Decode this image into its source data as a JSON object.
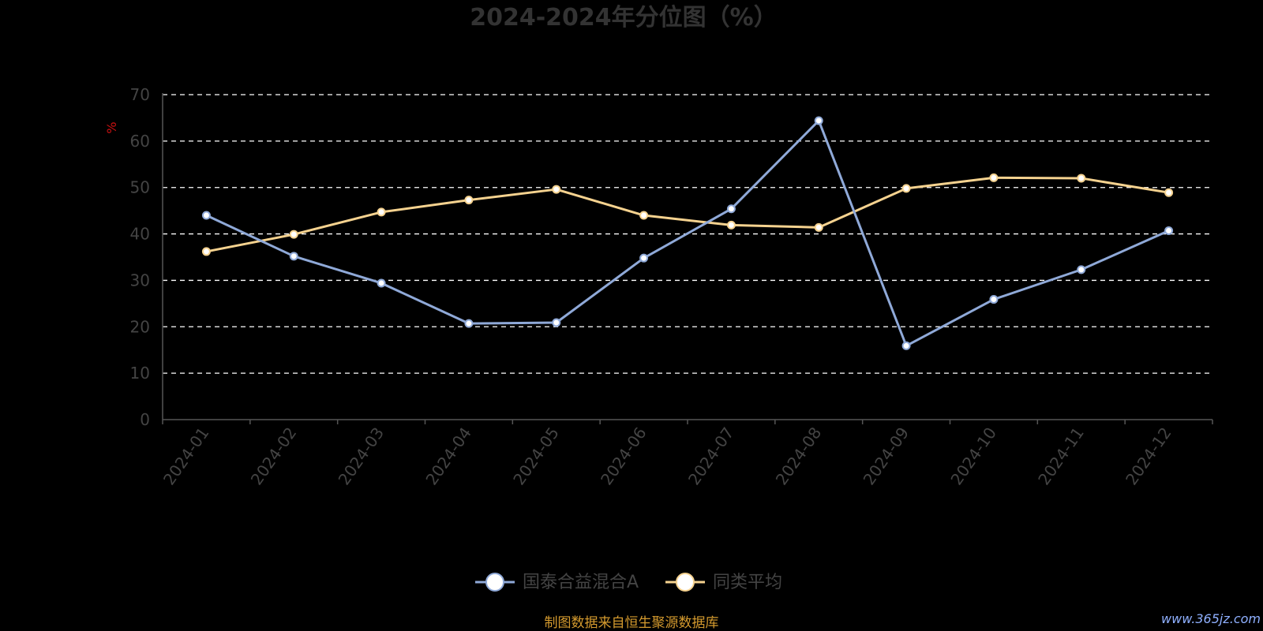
{
  "chart_data": {
    "type": "line",
    "title": "2024-2024年分位图（%）",
    "ylabel": "%",
    "xlabel": "",
    "ylim": [
      0,
      70
    ],
    "yticks": [
      0,
      10,
      20,
      30,
      40,
      50,
      60,
      70
    ],
    "categories": [
      "2024-01",
      "2024-02",
      "2024-03",
      "2024-04",
      "2024-05",
      "2024-06",
      "2024-07",
      "2024-08",
      "2024-09",
      "2024-10",
      "2024-11",
      "2024-12"
    ],
    "series": [
      {
        "name": "国泰合益混合A",
        "color": "#8fa9d8",
        "values": [
          44.0,
          35.2,
          29.4,
          20.7,
          20.9,
          34.8,
          45.4,
          64.4,
          15.9,
          25.9,
          32.3,
          40.7
        ]
      },
      {
        "name": "同类平均",
        "color": "#f5d28f",
        "values": [
          36.2,
          39.9,
          44.7,
          47.3,
          49.6,
          44.0,
          41.9,
          41.4,
          49.8,
          52.1,
          52.0,
          48.9
        ]
      }
    ],
    "grid": true,
    "legend": "bottom-center"
  },
  "source_text": "制图数据来自恒生聚源数据库",
  "watermark": "www.365jz.com"
}
